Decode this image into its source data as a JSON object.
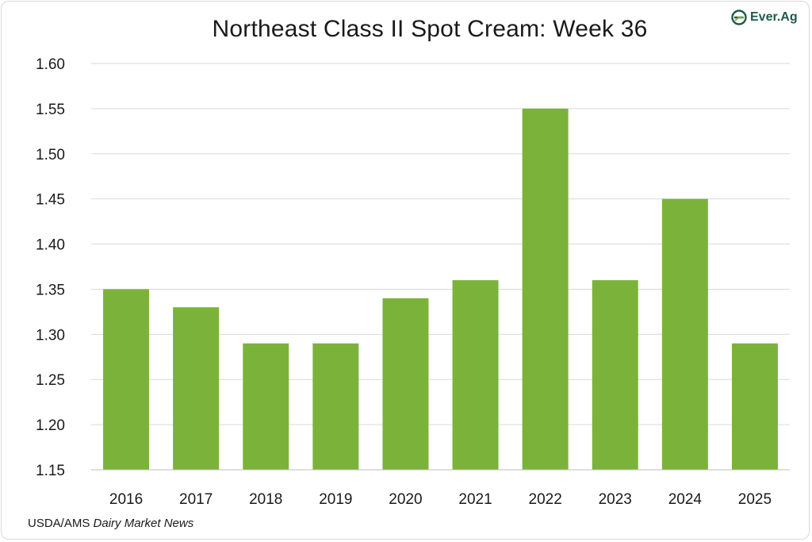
{
  "brand": {
    "logo_text": "Ever.Ag"
  },
  "source": {
    "org": "USDA/AMS",
    "publication": "Dairy Market News"
  },
  "chart_data": {
    "type": "bar",
    "title": "Northeast Class II Spot Cream: Week 36",
    "xlabel": "",
    "ylabel": "",
    "categories": [
      "2016",
      "2017",
      "2018",
      "2019",
      "2020",
      "2021",
      "2022",
      "2023",
      "2024",
      "2025"
    ],
    "values": [
      1.35,
      1.33,
      1.29,
      1.29,
      1.34,
      1.36,
      1.55,
      1.36,
      1.45,
      1.29
    ],
    "ylim": [
      1.15,
      1.6
    ],
    "yticks": [
      "1.15",
      "1.20",
      "1.25",
      "1.30",
      "1.35",
      "1.40",
      "1.45",
      "1.50",
      "1.55",
      "1.60"
    ],
    "grid": true,
    "legend": "none",
    "bar_color": "#7bb33a",
    "grid_color": "#d9d9d9"
  }
}
